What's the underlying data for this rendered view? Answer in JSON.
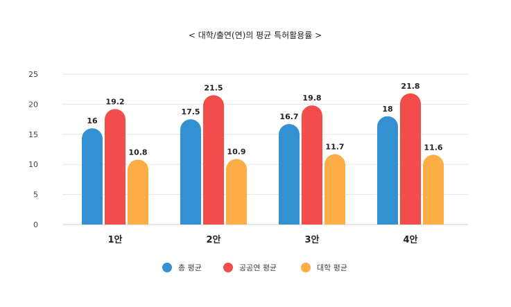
{
  "chart_data": {
    "type": "bar",
    "title": "< 대학/출연(연)의 평균 특허활용률 >",
    "categories": [
      "1안",
      "2안",
      "3안",
      "4안"
    ],
    "series": [
      {
        "name": "총 평균",
        "color": "#3391d2",
        "values": [
          16,
          17.5,
          16.7,
          18
        ],
        "labels": [
          "16",
          "17.5",
          "16.7",
          "18"
        ]
      },
      {
        "name": "공공연 평균",
        "color": "#f24d4b",
        "values": [
          19.2,
          21.5,
          19.8,
          21.8
        ],
        "labels": [
          "19.2",
          "21.5",
          "19.8",
          "21.8"
        ]
      },
      {
        "name": "대학 평균",
        "color": "#fcad45",
        "values": [
          10.8,
          10.9,
          11.7,
          11.6
        ],
        "labels": [
          "10.8",
          "10.9",
          "11.7",
          "11.6"
        ]
      }
    ],
    "yticks": [
      "0",
      "5",
      "10",
      "15",
      "20",
      "25"
    ],
    "ylim": [
      0,
      25
    ],
    "xlabel": "",
    "ylabel": "",
    "grid": true,
    "legend": "bottom"
  }
}
